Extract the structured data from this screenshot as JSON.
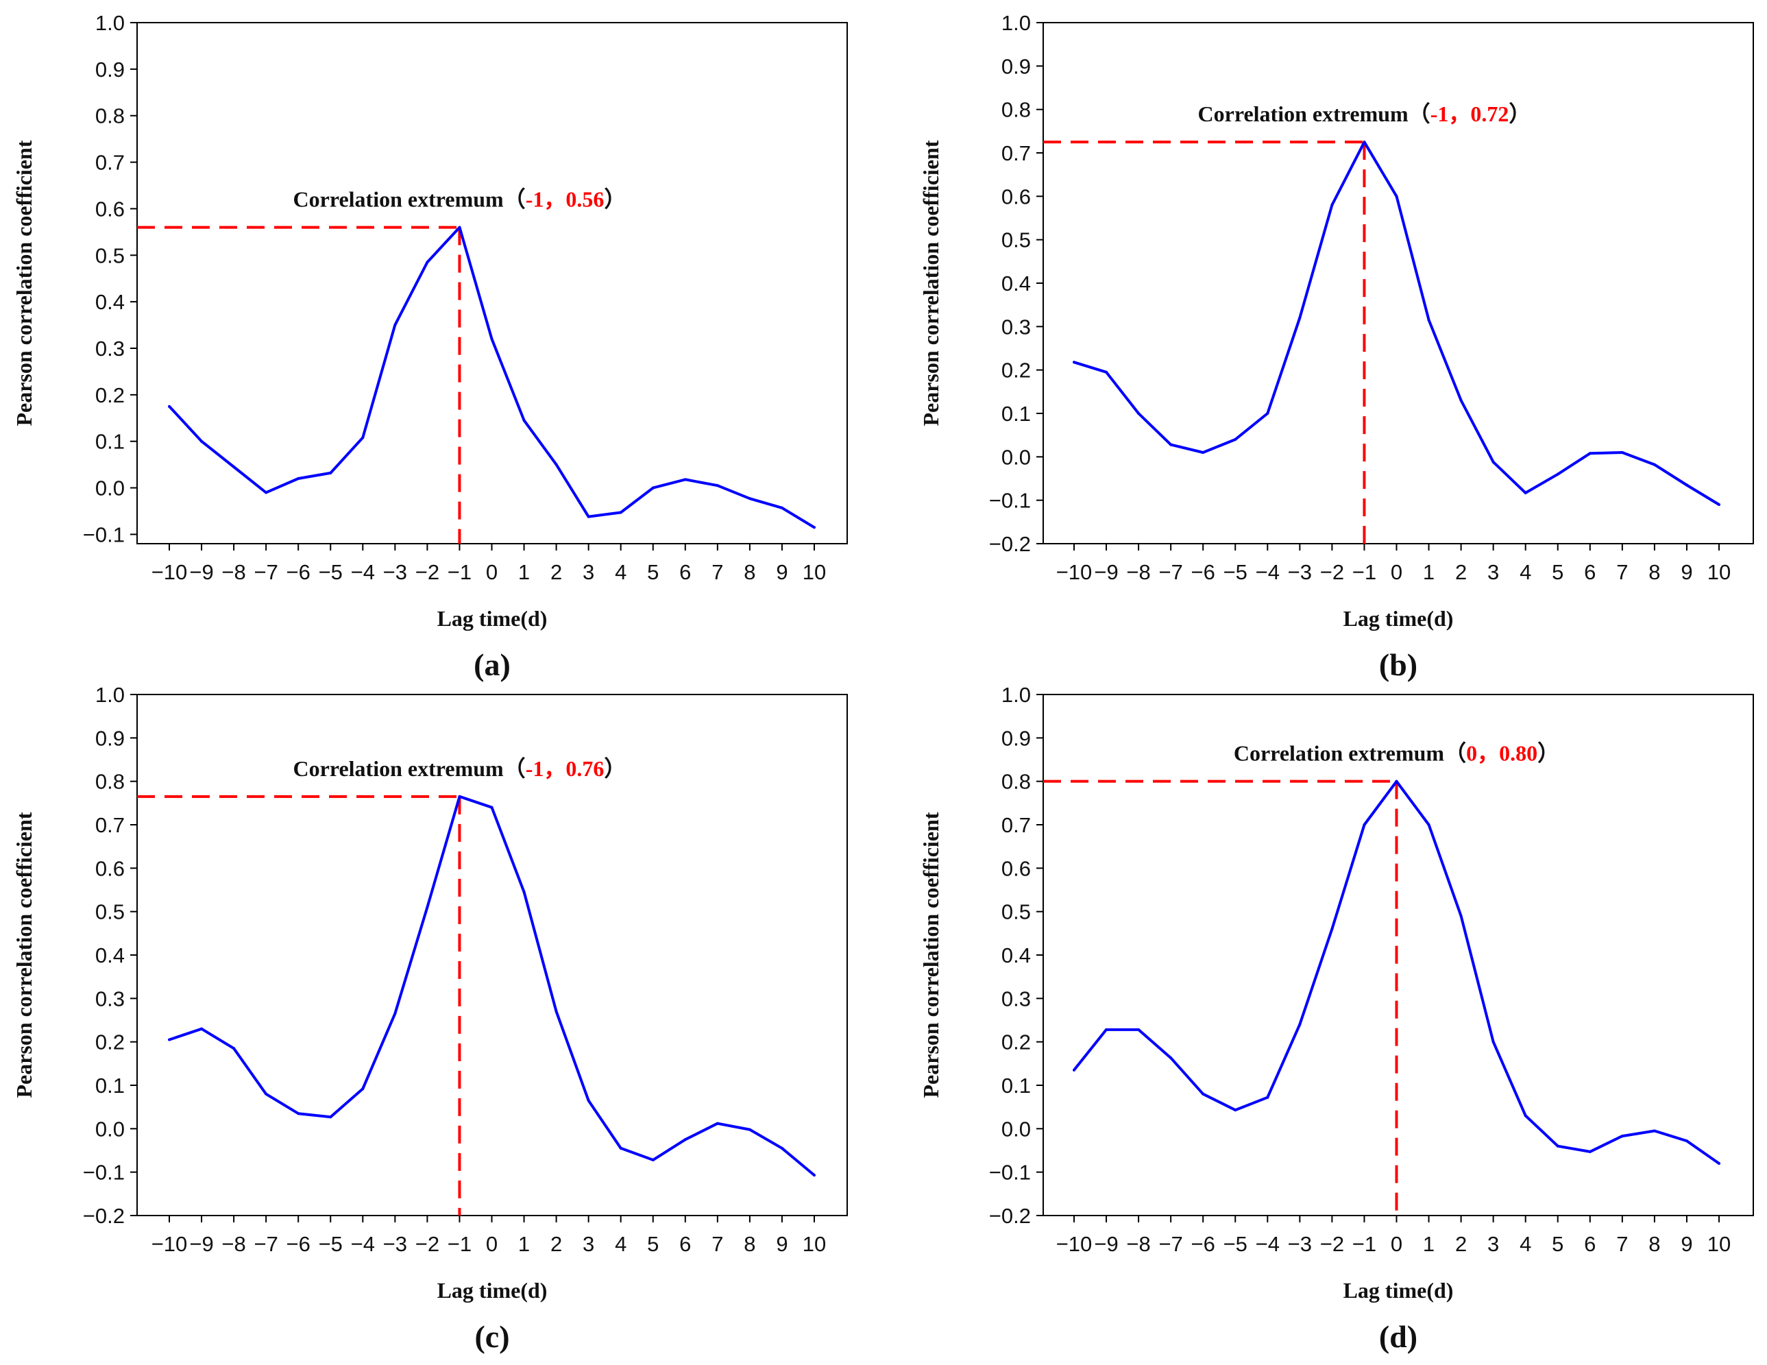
{
  "colors": {
    "series": "#0000ff",
    "annotation": "#ff0000",
    "axis": "#000000"
  },
  "chart_data": [
    {
      "type": "line",
      "panel_label": "(a)",
      "xlabel": "Lag time(d)",
      "ylabel": "Pearson correlation coefficient",
      "x": [
        -10,
        -9,
        -8,
        -7,
        -6,
        -5,
        -4,
        -3,
        -2,
        -1,
        0,
        1,
        2,
        3,
        4,
        5,
        6,
        7,
        8,
        9,
        10
      ],
      "x_tick_labels": [
        "−10",
        "−9",
        "−8",
        "−7",
        "−6",
        "−5",
        "−4",
        "−3",
        "−2",
        "−1",
        "0",
        "1",
        "2",
        "3",
        "4",
        "5",
        "6",
        "7",
        "8",
        "9",
        "10"
      ],
      "series": [
        {
          "values": [
            0.175,
            0.1,
            0.045,
            -0.01,
            0.02,
            0.032,
            0.108,
            0.35,
            0.485,
            0.56,
            0.32,
            0.145,
            0.05,
            -0.062,
            -0.053,
            0.0,
            0.018,
            0.005,
            -0.023,
            -0.043,
            -0.085
          ]
        }
      ],
      "ylim": [
        -0.12,
        1.0
      ],
      "y_ticks": [
        -0.1,
        0.0,
        0.1,
        0.2,
        0.3,
        0.4,
        0.5,
        0.6,
        0.7,
        0.8,
        0.9,
        1.0
      ],
      "y_tick_labels": [
        "−0.1",
        "0.0",
        "0.1",
        "0.2",
        "0.3",
        "0.4",
        "0.5",
        "0.6",
        "0.7",
        "0.8",
        "0.9",
        "1.0"
      ],
      "annotation": {
        "text": "Correlation extremum",
        "open": "（",
        "x_label": "-1",
        "sep": "，",
        "y_label": "0.56",
        "close": "）",
        "x": -1,
        "y": 0.56
      }
    },
    {
      "type": "line",
      "panel_label": "(b)",
      "xlabel": "Lag time(d)",
      "ylabel": "Pearson correlation coefficient",
      "x": [
        -10,
        -9,
        -8,
        -7,
        -6,
        -5,
        -4,
        -3,
        -2,
        -1,
        0,
        1,
        2,
        3,
        4,
        5,
        6,
        7,
        8,
        9,
        10
      ],
      "x_tick_labels": [
        "−10",
        "−9",
        "−8",
        "−7",
        "−6",
        "−5",
        "−4",
        "−3",
        "−2",
        "−1",
        "0",
        "1",
        "2",
        "3",
        "4",
        "5",
        "6",
        "7",
        "8",
        "9",
        "10"
      ],
      "series": [
        {
          "values": [
            0.218,
            0.195,
            0.1,
            0.028,
            0.01,
            0.04,
            0.1,
            0.32,
            0.58,
            0.725,
            0.6,
            0.315,
            0.13,
            -0.012,
            -0.083,
            -0.04,
            0.008,
            0.01,
            -0.018,
            -0.065,
            -0.11
          ]
        }
      ],
      "ylim": [
        -0.2,
        1.0
      ],
      "y_ticks": [
        -0.2,
        -0.1,
        0.0,
        0.1,
        0.2,
        0.3,
        0.4,
        0.5,
        0.6,
        0.7,
        0.8,
        0.9,
        1.0
      ],
      "y_tick_labels": [
        "−0.2",
        "−0.1",
        "0.0",
        "0.1",
        "0.2",
        "0.3",
        "0.4",
        "0.5",
        "0.6",
        "0.7",
        "0.8",
        "0.9",
        "1.0"
      ],
      "annotation": {
        "text": "Correlation extremum",
        "open": "（",
        "x_label": "-1",
        "sep": "，",
        "y_label": "0.72",
        "close": "）",
        "x": -1,
        "y": 0.725
      }
    },
    {
      "type": "line",
      "panel_label": "(c)",
      "xlabel": "Lag time(d)",
      "ylabel": "Pearson correlation coefficient",
      "x": [
        -10,
        -9,
        -8,
        -7,
        -6,
        -5,
        -4,
        -3,
        -2,
        -1,
        0,
        1,
        2,
        3,
        4,
        5,
        6,
        7,
        8,
        9,
        10
      ],
      "x_tick_labels": [
        "−10",
        "−9",
        "−8",
        "−7",
        "−6",
        "−5",
        "−4",
        "−3",
        "−2",
        "−1",
        "0",
        "1",
        "2",
        "3",
        "4",
        "5",
        "6",
        "7",
        "8",
        "9",
        "10"
      ],
      "series": [
        {
          "values": [
            0.205,
            0.23,
            0.185,
            0.08,
            0.035,
            0.027,
            0.092,
            0.265,
            0.51,
            0.765,
            0.74,
            0.545,
            0.27,
            0.065,
            -0.045,
            -0.072,
            -0.025,
            0.012,
            -0.002,
            -0.045,
            -0.107
          ]
        }
      ],
      "ylim": [
        -0.2,
        1.0
      ],
      "y_ticks": [
        -0.2,
        -0.1,
        0.0,
        0.1,
        0.2,
        0.3,
        0.4,
        0.5,
        0.6,
        0.7,
        0.8,
        0.9,
        1.0
      ],
      "y_tick_labels": [
        "−0.2",
        "−0.1",
        "0.0",
        "0.1",
        "0.2",
        "0.3",
        "0.4",
        "0.5",
        "0.6",
        "0.7",
        "0.8",
        "0.9",
        "1.0"
      ],
      "annotation": {
        "text": "Correlation extremum",
        "open": "（",
        "x_label": "-1",
        "sep": "，",
        "y_label": "0.76",
        "close": "）",
        "x": -1,
        "y": 0.765
      }
    },
    {
      "type": "line",
      "panel_label": "(d)",
      "xlabel": "Lag time(d)",
      "ylabel": "Pearson correlation coefficient",
      "x": [
        -10,
        -9,
        -8,
        -7,
        -6,
        -5,
        -4,
        -3,
        -2,
        -1,
        0,
        1,
        2,
        3,
        4,
        5,
        6,
        7,
        8,
        9,
        10
      ],
      "x_tick_labels": [
        "−10",
        "−9",
        "−8",
        "−7",
        "−6",
        "−5",
        "−4",
        "−3",
        "−2",
        "−1",
        "0",
        "1",
        "2",
        "3",
        "4",
        "5",
        "6",
        "7",
        "8",
        "9",
        "10"
      ],
      "series": [
        {
          "values": [
            0.135,
            0.228,
            0.228,
            0.163,
            0.08,
            0.043,
            0.072,
            0.24,
            0.46,
            0.7,
            0.8,
            0.7,
            0.49,
            0.2,
            0.03,
            -0.04,
            -0.053,
            -0.017,
            -0.005,
            -0.028,
            -0.08
          ]
        }
      ],
      "ylim": [
        -0.2,
        1.0
      ],
      "y_ticks": [
        -0.2,
        -0.1,
        0.0,
        0.1,
        0.2,
        0.3,
        0.4,
        0.5,
        0.6,
        0.7,
        0.8,
        0.9,
        1.0
      ],
      "y_tick_labels": [
        "−0.2",
        "−0.1",
        "0.0",
        "0.1",
        "0.2",
        "0.3",
        "0.4",
        "0.5",
        "0.6",
        "0.7",
        "0.8",
        "0.9",
        "1.0"
      ],
      "annotation": {
        "text": "Correlation extremum",
        "open": "（",
        "x_label": "0",
        "sep": "，",
        "y_label": "0.80",
        "close": "）",
        "x": 0,
        "y": 0.8
      }
    }
  ]
}
